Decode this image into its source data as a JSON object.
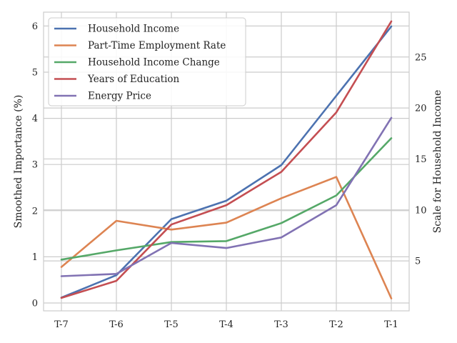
{
  "chart_data": {
    "type": "line",
    "categories": [
      "T-7",
      "T-6",
      "T-5",
      "T-4",
      "T-3",
      "T-2",
      "T-1"
    ],
    "series": [
      {
        "name": "Household Income",
        "axis": "right",
        "color": "#4c72b0",
        "values": [
          1.4,
          3.6,
          9.1,
          10.9,
          14.4,
          21.2,
          28.0
        ]
      },
      {
        "name": "Part-Time Employment Rate",
        "axis": "left",
        "color": "#dd8452",
        "values": [
          0.78,
          1.78,
          1.59,
          1.74,
          2.27,
          2.73,
          0.1
        ]
      },
      {
        "name": "Household Income Change",
        "axis": "left",
        "color": "#55a868",
        "values": [
          0.94,
          1.14,
          1.32,
          1.34,
          1.73,
          2.33,
          3.57
        ]
      },
      {
        "name": "Years of Education",
        "axis": "left",
        "color": "#c44e52",
        "values": [
          0.11,
          0.48,
          1.7,
          2.12,
          2.84,
          4.13,
          6.1
        ]
      },
      {
        "name": "Energy Price",
        "axis": "left",
        "color": "#8172b3",
        "values": [
          0.58,
          0.63,
          1.3,
          1.19,
          1.42,
          2.12,
          4.01
        ]
      }
    ],
    "ylabel": "Smoothed Importance (%)",
    "ylabel_right": "Scale for Household Income",
    "ylim": [
      -0.17,
      6.3
    ],
    "yticks": [
      0,
      1,
      2,
      3,
      4,
      5,
      6
    ],
    "ylim_right": [
      0.1,
      29.4
    ],
    "yticks_right": [
      5,
      10,
      15,
      20,
      25
    ],
    "grid": true,
    "legend_position": "upper-left"
  }
}
